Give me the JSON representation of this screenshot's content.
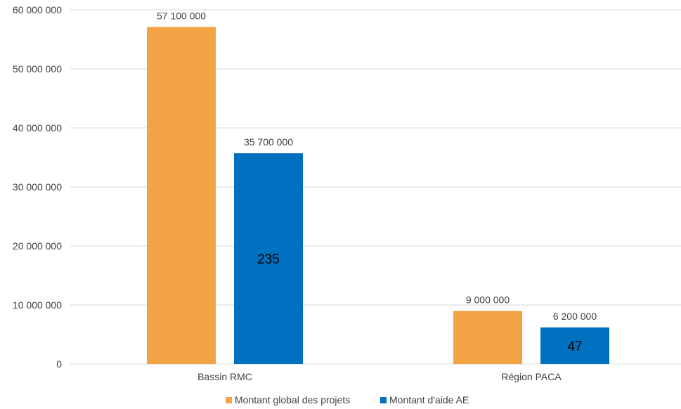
{
  "chart_data": {
    "type": "bar",
    "categories": [
      "Bassin RMC",
      "Région PACA"
    ],
    "series": [
      {
        "name": "Montant global des projets",
        "values": [
          57100000,
          9000000
        ],
        "labels": [
          "57 100 000",
          "9 000 000"
        ],
        "color": "#F2A444"
      },
      {
        "name": "Montant d'aide AE",
        "values": [
          35700000,
          6200000
        ],
        "labels": [
          "35 700 000",
          "6 200 000"
        ],
        "inner_labels": [
          "235",
          "47"
        ],
        "color": "#0070C0"
      }
    ],
    "ylim": [
      0,
      60000000
    ],
    "yticks": [
      0,
      10000000,
      20000000,
      30000000,
      40000000,
      50000000,
      60000000
    ],
    "ytick_labels": [
      "0",
      "10 000 000",
      "20 000 000",
      "30 000 000",
      "40 000 000",
      "50 000 000",
      "60 000 000"
    ],
    "grid": true,
    "gridline_color": "#D9D9D9",
    "legend_position": "bottom",
    "title": "",
    "xlabel": "",
    "ylabel": ""
  }
}
